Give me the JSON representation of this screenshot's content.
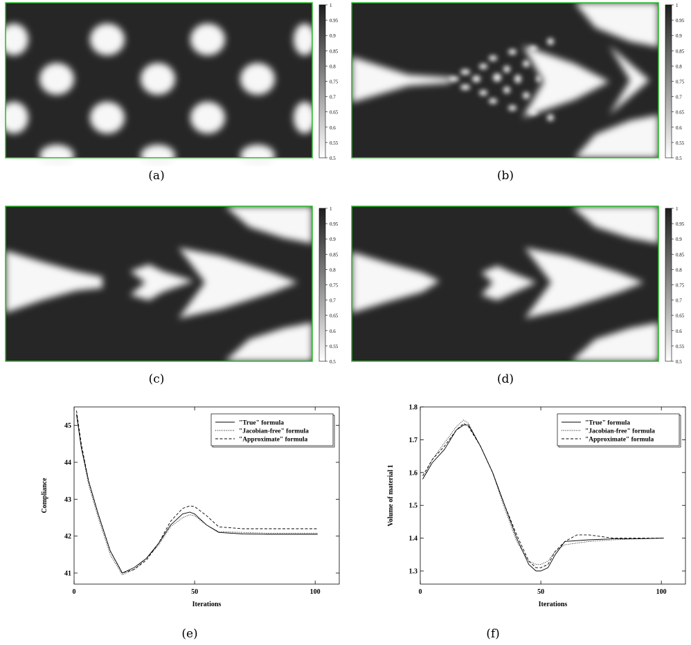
{
  "captions": [
    "(a)",
    "(b)",
    "(c)",
    "(d)",
    "(e)",
    "(f)"
  ],
  "colors": {
    "frame": "#22bb22",
    "dark": "#262626",
    "light": "#f7f7f7"
  },
  "colorbar": {
    "ticks": [
      "1",
      "0.95",
      "0.9",
      "0.85",
      "0.8",
      "0.75",
      "0.7",
      "0.65",
      "0.6",
      "0.55",
      "0.5"
    ]
  },
  "chart_data": [
    {
      "id": "e",
      "type": "line",
      "xlabel": "Iterations",
      "ylabel": "Compliance",
      "xlim": [
        0,
        110
      ],
      "ylim": [
        40.7,
        45.5
      ],
      "xticks": [
        "0",
        "50",
        "100"
      ],
      "xtick_values": [
        0,
        50,
        100
      ],
      "yticks": [
        "41",
        "42",
        "43",
        "44",
        "45"
      ],
      "ytick_values": [
        41,
        42,
        43,
        44,
        45
      ],
      "legend_position": "top-right",
      "series": [
        {
          "name": "\"True\" formula",
          "dash": "solid",
          "x": [
            1,
            3,
            6,
            10,
            15,
            20,
            25,
            30,
            35,
            40,
            45,
            48,
            50,
            55,
            60,
            70,
            80,
            90,
            101
          ],
          "y": [
            45.3,
            44.4,
            43.5,
            42.6,
            41.6,
            41.0,
            41.15,
            41.4,
            41.8,
            42.3,
            42.6,
            42.65,
            42.6,
            42.3,
            42.1,
            42.06,
            42.05,
            42.05,
            42.05
          ]
        },
        {
          "name": "\"Jacobian-free\" formula",
          "dash": "dotted",
          "x": [
            1,
            3,
            6,
            10,
            15,
            20,
            25,
            30,
            35,
            40,
            45,
            48,
            50,
            55,
            60,
            70,
            80,
            90,
            101
          ],
          "y": [
            45.3,
            44.4,
            43.4,
            42.5,
            41.5,
            40.95,
            41.1,
            41.4,
            41.75,
            42.25,
            42.5,
            42.58,
            42.55,
            42.3,
            42.12,
            42.1,
            42.08,
            42.08,
            42.08
          ]
        },
        {
          "name": "\"Approximate\" formula",
          "dash": "dashed",
          "x": [
            1,
            3,
            6,
            10,
            15,
            20,
            25,
            30,
            35,
            40,
            45,
            48,
            50,
            55,
            60,
            70,
            80,
            90,
            101
          ],
          "y": [
            45.4,
            44.5,
            43.5,
            42.6,
            41.6,
            41.0,
            41.1,
            41.35,
            41.8,
            42.4,
            42.75,
            42.82,
            42.8,
            42.55,
            42.25,
            42.2,
            42.2,
            42.2,
            42.2
          ]
        }
      ]
    },
    {
      "id": "f",
      "type": "line",
      "xlabel": "Iterations",
      "ylabel": "Volume of material 1",
      "xlim": [
        0,
        110
      ],
      "ylim": [
        1.26,
        1.8
      ],
      "xticks": [
        "0",
        "50",
        "100"
      ],
      "xtick_values": [
        0,
        50,
        100
      ],
      "yticks": [
        "1.3",
        "1.4",
        "1.5",
        "1.6",
        "1.7",
        "1.8"
      ],
      "ytick_values": [
        1.3,
        1.4,
        1.5,
        1.6,
        1.7,
        1.8
      ],
      "legend_position": "top-right",
      "series": [
        {
          "name": "\"True\" formula",
          "dash": "solid",
          "x": [
            1,
            5,
            10,
            15,
            18,
            20,
            25,
            30,
            35,
            40,
            45,
            48,
            50,
            53,
            56,
            60,
            70,
            80,
            90,
            101
          ],
          "y": [
            1.58,
            1.63,
            1.67,
            1.73,
            1.745,
            1.745,
            1.68,
            1.6,
            1.5,
            1.4,
            1.32,
            1.3,
            1.3,
            1.31,
            1.35,
            1.39,
            1.395,
            1.398,
            1.398,
            1.4
          ]
        },
        {
          "name": "\"Jacobian-free\" formula",
          "dash": "dotted",
          "x": [
            1,
            5,
            10,
            15,
            18,
            20,
            25,
            30,
            35,
            40,
            45,
            48,
            50,
            53,
            56,
            60,
            70,
            80,
            90,
            101
          ],
          "y": [
            1.58,
            1.64,
            1.69,
            1.74,
            1.76,
            1.75,
            1.68,
            1.6,
            1.49,
            1.39,
            1.33,
            1.32,
            1.32,
            1.33,
            1.36,
            1.38,
            1.39,
            1.395,
            1.398,
            1.4
          ]
        },
        {
          "name": "\"Approximate\" formula",
          "dash": "dashed",
          "x": [
            1,
            5,
            10,
            15,
            18,
            20,
            25,
            30,
            35,
            40,
            45,
            48,
            50,
            53,
            56,
            60,
            65,
            70,
            80,
            90,
            101
          ],
          "y": [
            1.59,
            1.64,
            1.68,
            1.73,
            1.75,
            1.74,
            1.68,
            1.6,
            1.5,
            1.41,
            1.33,
            1.31,
            1.31,
            1.32,
            1.36,
            1.39,
            1.41,
            1.41,
            1.4,
            1.4,
            1.4
          ]
        }
      ]
    }
  ]
}
